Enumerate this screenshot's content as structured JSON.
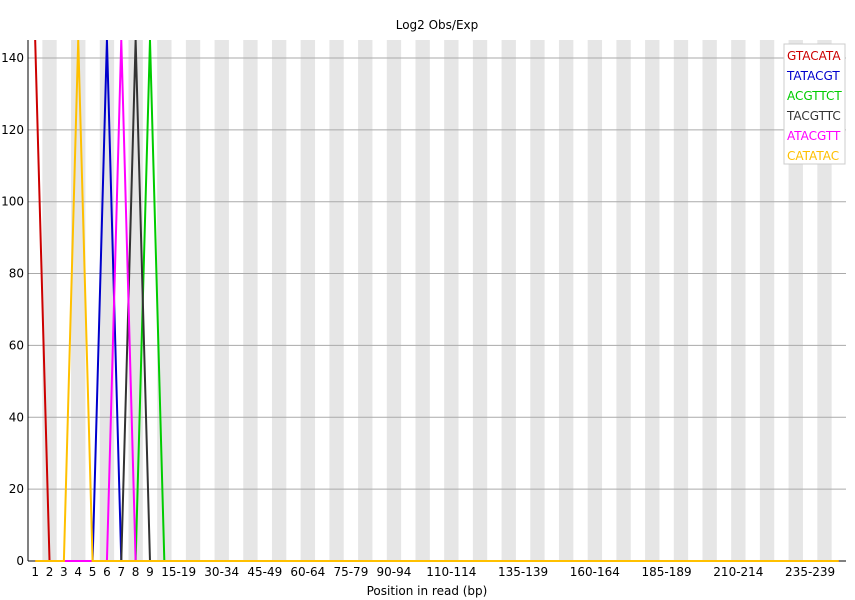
{
  "chart_data": {
    "type": "line",
    "title": "Log2 Obs/Exp",
    "xlabel": "Position in read (bp)",
    "ylabel": "",
    "ylim": [
      0,
      145
    ],
    "yticks": [
      0,
      20,
      40,
      60,
      80,
      100,
      120,
      140
    ],
    "categories": [
      "1",
      "2",
      "3",
      "4",
      "5",
      "6",
      "7",
      "8",
      "9",
      "10-14",
      "15-19",
      "20-24",
      "25-29",
      "30-34",
      "35-39",
      "40-44",
      "45-49",
      "50-54",
      "55-59",
      "60-64",
      "65-69",
      "70-74",
      "75-79",
      "80-84",
      "85-89",
      "90-94",
      "95-99",
      "100-104",
      "105-109",
      "110-114",
      "115-119",
      "120-124",
      "125-129",
      "130-134",
      "135-139",
      "140-144",
      "145-149",
      "150-154",
      "155-159",
      "160-164",
      "165-169",
      "170-174",
      "175-179",
      "180-184",
      "185-189",
      "190-194",
      "195-199",
      "200-204",
      "205-209",
      "210-214",
      "215-219",
      "220-224",
      "225-229",
      "230-234",
      "235-239",
      "240-244",
      "245-249"
    ],
    "tick_labels": [
      "1",
      "2",
      "3",
      "4",
      "5",
      "6",
      "7",
      "8",
      "9",
      "15-19",
      "30-34",
      "45-49",
      "60-64",
      "75-79",
      "90-94",
      "110-114",
      "135-139",
      "160-164",
      "185-189",
      "210-214",
      "235-239"
    ],
    "grid": true,
    "legend_position": "top-right",
    "series": [
      {
        "name": "GTACATA",
        "color": "#cc0000",
        "peak_position": "1",
        "peak_value": 145
      },
      {
        "name": "TATACGT",
        "color": "#0000cc",
        "peak_position": "6",
        "peak_value": 145
      },
      {
        "name": "ACGTTCT",
        "color": "#00cc00",
        "peak_position": "9",
        "peak_value": 145
      },
      {
        "name": "TACGTTC",
        "color": "#333333",
        "peak_position": "8",
        "peak_value": 145
      },
      {
        "name": "ATACGTT",
        "color": "#ff00ff",
        "peak_position": "7",
        "peak_value": 145
      },
      {
        "name": "CATATAC",
        "color": "#ffc000",
        "peak_position": "4",
        "peak_value": 145
      }
    ],
    "baseline_color": "#e6a800"
  }
}
